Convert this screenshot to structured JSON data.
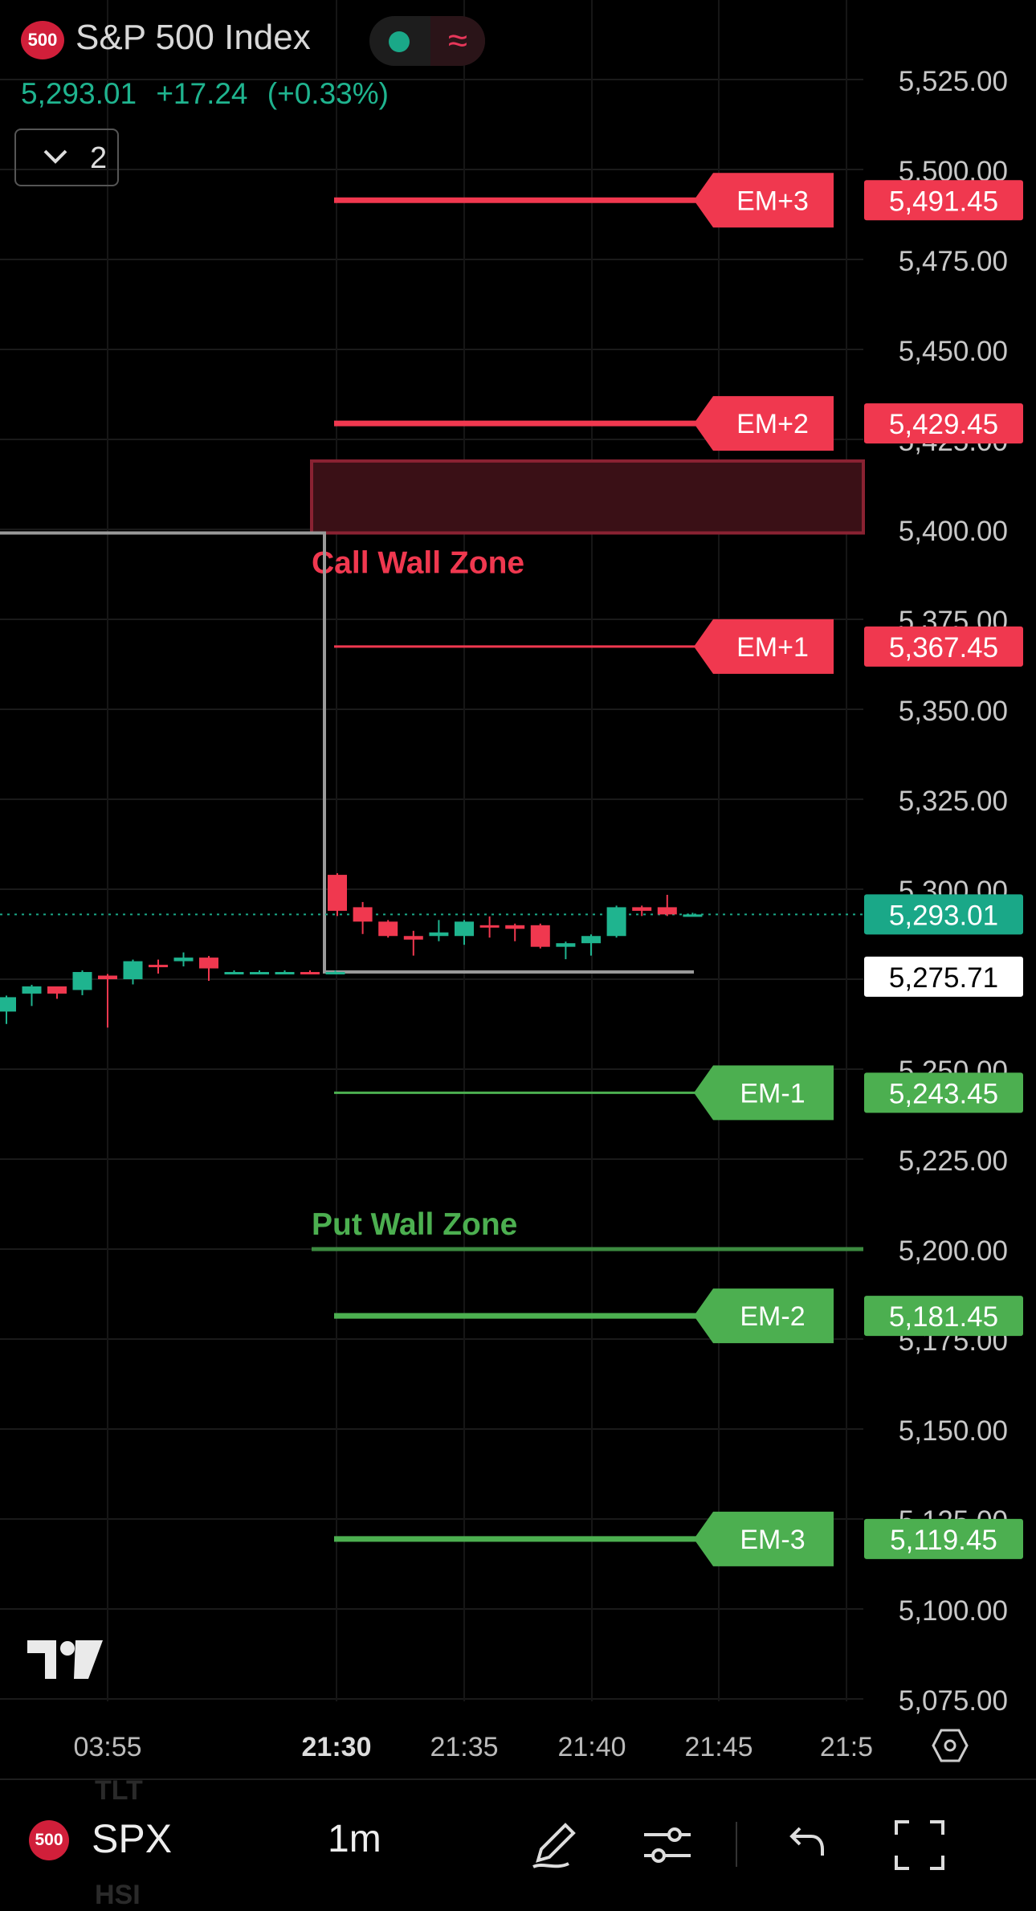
{
  "header": {
    "logo_badge": "500",
    "title": "S&P 500 Index",
    "last_price": "5,293.01",
    "change": "+17.24",
    "change_pct": "(+0.33%)",
    "layers_count": "2",
    "colors": {
      "up": "#1fb48f",
      "down": "#f0384f"
    }
  },
  "chart_data": {
    "type": "candlestick",
    "title": "",
    "y_axis": {
      "min": 5075,
      "max": 5525,
      "tick_labels": [
        "5,525.00",
        "5,500.00",
        "5,475.00",
        "5,450.00",
        "5,425.00",
        "5,400.00",
        "5,375.00",
        "5,350.00",
        "5,325.00",
        "5,300.00",
        "5,275.00",
        "5,250.00",
        "5,225.00",
        "5,200.00",
        "5,175.00",
        "5,150.00",
        "5,125.00",
        "5,100.00",
        "5,075.00"
      ],
      "tick_values": [
        5525,
        5500,
        5475,
        5450,
        5425,
        5400,
        5375,
        5350,
        5325,
        5300,
        5275,
        5250,
        5225,
        5200,
        5175,
        5150,
        5125,
        5100,
        5075
      ]
    },
    "x_axis": {
      "tick_labels": [
        "03:55",
        "21:30",
        "21:35",
        "21:40",
        "21:45",
        "21:5"
      ],
      "bold_label": "21:30"
    },
    "candles_prev_session": [
      {
        "o": 5266,
        "h": 5270,
        "c": 5270,
        "l": 5263,
        "dir": "up"
      },
      {
        "o": 5271,
        "h": 5273,
        "c": 5273,
        "l": 5268,
        "dir": "up"
      },
      {
        "o": 5273,
        "h": 5272,
        "c": 5271,
        "l": 5270,
        "dir": "down"
      },
      {
        "o": 5272,
        "h": 5277,
        "c": 5277,
        "l": 5271,
        "dir": "up"
      },
      {
        "o": 5276,
        "h": 5276,
        "c": 5275,
        "l": 5262,
        "dir": "down"
      },
      {
        "o": 5275,
        "h": 5280,
        "c": 5280,
        "l": 5274,
        "dir": "up"
      },
      {
        "o": 5279,
        "h": 5280,
        "c": 5279,
        "l": 5277,
        "dir": "down"
      },
      {
        "o": 5280,
        "h": 5282,
        "c": 5281,
        "l": 5279,
        "dir": "up"
      },
      {
        "o": 5281,
        "h": 5281,
        "c": 5278,
        "l": 5275,
        "dir": "down"
      },
      {
        "o": 5277,
        "h": 5277,
        "c": 5277,
        "l": 5277,
        "dir": "up"
      },
      {
        "o": 5277,
        "h": 5277,
        "c": 5277,
        "l": 5277,
        "dir": "up"
      },
      {
        "o": 5277,
        "h": 5277,
        "c": 5277,
        "l": 5277,
        "dir": "up"
      },
      {
        "o": 5277,
        "h": 5277,
        "c": 5277,
        "l": 5277,
        "dir": "down"
      },
      {
        "o": 5277,
        "h": 5277,
        "c": 5277,
        "l": 5277,
        "dir": "up"
      }
    ],
    "candles_session": [
      {
        "o": 5304,
        "h": 5304,
        "c": 5294,
        "l": 5293,
        "dir": "down"
      },
      {
        "o": 5295,
        "h": 5296,
        "c": 5291,
        "l": 5288,
        "dir": "down"
      },
      {
        "o": 5291,
        "h": 5291,
        "c": 5287,
        "l": 5287,
        "dir": "down"
      },
      {
        "o": 5287,
        "h": 5288,
        "c": 5286,
        "l": 5282,
        "dir": "down"
      },
      {
        "o": 5287,
        "h": 5291,
        "c": 5288,
        "l": 5286,
        "dir": "up"
      },
      {
        "o": 5287,
        "h": 5291,
        "c": 5291,
        "l": 5285,
        "dir": "up"
      },
      {
        "o": 5290,
        "h": 5292,
        "c": 5290,
        "l": 5287,
        "dir": "down"
      },
      {
        "o": 5290,
        "h": 5290,
        "c": 5289,
        "l": 5286,
        "dir": "down"
      },
      {
        "o": 5290,
        "h": 5290,
        "c": 5284,
        "l": 5284,
        "dir": "down"
      },
      {
        "o": 5284,
        "h": 5285,
        "c": 5285,
        "l": 5281,
        "dir": "up"
      },
      {
        "o": 5285,
        "h": 5287,
        "c": 5287,
        "l": 5282,
        "dir": "up"
      },
      {
        "o": 5287,
        "h": 5295,
        "c": 5295,
        "l": 5287,
        "dir": "up"
      },
      {
        "o": 5295,
        "h": 5295,
        "c": 5294,
        "l": 5293,
        "dir": "down"
      },
      {
        "o": 5295,
        "h": 5298,
        "c": 5293,
        "l": 5293,
        "dir": "down"
      },
      {
        "o": 5293,
        "h": 5293,
        "c": 5293,
        "l": 5293,
        "dir": "up"
      }
    ],
    "levels": [
      {
        "id": "em-plus-3",
        "label": "EM+3",
        "value": 5491.45,
        "price_label": "5,491.45",
        "color": "#f0384f",
        "thick": true
      },
      {
        "id": "em-plus-2",
        "label": "EM+2",
        "value": 5429.45,
        "price_label": "5,429.45",
        "color": "#f0384f",
        "thick": true
      },
      {
        "id": "em-plus-1",
        "label": "EM+1",
        "value": 5367.45,
        "price_label": "5,367.45",
        "color": "#f0384f",
        "thick": false
      },
      {
        "id": "em-minus-1",
        "label": "EM-1",
        "value": 5243.45,
        "price_label": "5,243.45",
        "color": "#4caf50",
        "thick": false
      },
      {
        "id": "em-minus-2",
        "label": "EM-2",
        "value": 5181.45,
        "price_label": "5,181.45",
        "color": "#4caf50",
        "thick": true
      },
      {
        "id": "em-minus-3",
        "label": "EM-3",
        "value": 5119.45,
        "price_label": "5,119.45",
        "color": "#4caf50",
        "thick": true
      }
    ],
    "zones": {
      "call_wall": {
        "label": "Call Wall Zone",
        "top": 5419,
        "bottom": 5399,
        "color": "#f0384f"
      },
      "put_wall": {
        "label": "Put Wall Zone",
        "value": 5200,
        "color": "#4caf50"
      }
    },
    "range_box": {
      "top": 5399,
      "bottom": 5277
    },
    "current_price": {
      "value": 5293.01,
      "label": "5,293.01",
      "color": "#1aa888"
    },
    "marker_price": {
      "value": 5275.71,
      "label": "5,275.71"
    }
  },
  "toolbar": {
    "symbol_badge": "500",
    "symbol": "SPX",
    "interval": "1m",
    "ghost_above": "TLT",
    "ghost_below": "HSI"
  },
  "icons": [
    "pencil-icon",
    "sliders-icon",
    "undo-icon",
    "fullscreen-icon",
    "settings-hex-icon",
    "tradingview-logo-icon"
  ]
}
